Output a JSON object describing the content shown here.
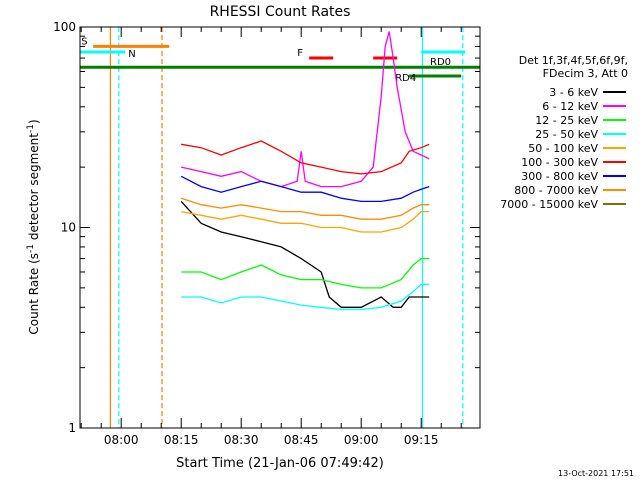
{
  "chart_data": {
    "type": "line",
    "title": "RHESSI Count Rates",
    "xlabel": "Start Time (21-Jan-06 07:49:42)",
    "ylabel_main": "Count Rate (s",
    "ylabel_sup1": "-1",
    "ylabel_mid": " detector segment",
    "ylabel_sup2": "-1",
    "ylabel_end": ")",
    "y_scale": "log",
    "ylim": [
      1,
      100
    ],
    "xlim_minutes": [
      469.7,
      569.7
    ],
    "x_ticks": [
      {
        "minute": 480,
        "label": "08:00"
      },
      {
        "minute": 495,
        "label": "08:15"
      },
      {
        "minute": 510,
        "label": "08:30"
      },
      {
        "minute": 525,
        "label": "08:45"
      },
      {
        "minute": 540,
        "label": "09:00"
      },
      {
        "minute": 555,
        "label": "09:15"
      }
    ],
    "y_ticks": [
      {
        "value": 1,
        "label": "1"
      },
      {
        "value": 10,
        "label": "10"
      },
      {
        "value": 100,
        "label": "100"
      }
    ],
    "legend": {
      "position": "right",
      "header": [
        "Det 1f,3f,4f,5f,6f,9f,",
        "FDecim 3, Att 0"
      ]
    },
    "series": [
      {
        "name": "3 - 6 keV",
        "color": "#000000",
        "points": [
          [
            495,
            13.5
          ],
          [
            500,
            10.5
          ],
          [
            505,
            9.5
          ],
          [
            510,
            9
          ],
          [
            515,
            8.5
          ],
          [
            520,
            8
          ],
          [
            525,
            7
          ],
          [
            530,
            6
          ],
          [
            532,
            4.5
          ],
          [
            535,
            4
          ],
          [
            540,
            4
          ],
          [
            545,
            4.5
          ],
          [
            548,
            4
          ],
          [
            550,
            4
          ],
          [
            552,
            4.5
          ],
          [
            555,
            4.5
          ],
          [
            557,
            4.5
          ]
        ]
      },
      {
        "name": "6 - 12 keV",
        "color": "#ff00ff",
        "points": [
          [
            495,
            20
          ],
          [
            500,
            19
          ],
          [
            505,
            18
          ],
          [
            510,
            19
          ],
          [
            515,
            17
          ],
          [
            520,
            16
          ],
          [
            524,
            17
          ],
          [
            525,
            24
          ],
          [
            526,
            17
          ],
          [
            530,
            16
          ],
          [
            535,
            16
          ],
          [
            540,
            17
          ],
          [
            543,
            20
          ],
          [
            545,
            45
          ],
          [
            546,
            80
          ],
          [
            547,
            95
          ],
          [
            548,
            70
          ],
          [
            549,
            50
          ],
          [
            551,
            30
          ],
          [
            553,
            24
          ],
          [
            555,
            23
          ],
          [
            557,
            22
          ]
        ]
      },
      {
        "name": "12 - 25 keV",
        "color": "#00ff00",
        "points": [
          [
            495,
            6
          ],
          [
            500,
            6
          ],
          [
            505,
            5.5
          ],
          [
            510,
            6
          ],
          [
            515,
            6.5
          ],
          [
            520,
            5.8
          ],
          [
            525,
            5.5
          ],
          [
            530,
            5.5
          ],
          [
            535,
            5.2
          ],
          [
            540,
            5
          ],
          [
            545,
            5
          ],
          [
            550,
            5.5
          ],
          [
            553,
            6.5
          ],
          [
            555,
            7
          ],
          [
            557,
            7
          ]
        ]
      },
      {
        "name": "25 - 50 keV",
        "color": "#00ffff",
        "points": [
          [
            495,
            4.5
          ],
          [
            500,
            4.5
          ],
          [
            505,
            4.2
          ],
          [
            510,
            4.5
          ],
          [
            515,
            4.5
          ],
          [
            520,
            4.3
          ],
          [
            525,
            4.1
          ],
          [
            530,
            4
          ],
          [
            535,
            3.9
          ],
          [
            540,
            3.9
          ],
          [
            545,
            4
          ],
          [
            550,
            4.3
          ],
          [
            553,
            4.8
          ],
          [
            555,
            5.2
          ],
          [
            557,
            5.2
          ]
        ]
      },
      {
        "name": "50 - 100 keV",
        "color": "#ffa500",
        "points": [
          [
            495,
            12
          ],
          [
            500,
            11.5
          ],
          [
            505,
            11
          ],
          [
            510,
            11.5
          ],
          [
            515,
            11
          ],
          [
            520,
            10.5
          ],
          [
            525,
            10.5
          ],
          [
            530,
            10
          ],
          [
            535,
            10
          ],
          [
            540,
            9.5
          ],
          [
            545,
            9.5
          ],
          [
            550,
            10
          ],
          [
            553,
            11
          ],
          [
            555,
            12
          ],
          [
            557,
            12
          ]
        ]
      },
      {
        "name": "100 - 300 keV",
        "color": "#ff0000",
        "points": [
          [
            495,
            26
          ],
          [
            500,
            25
          ],
          [
            505,
            23
          ],
          [
            510,
            25
          ],
          [
            515,
            27
          ],
          [
            520,
            24
          ],
          [
            525,
            21
          ],
          [
            530,
            20
          ],
          [
            535,
            19
          ],
          [
            540,
            18.5
          ],
          [
            545,
            19
          ],
          [
            550,
            21
          ],
          [
            552,
            24
          ],
          [
            555,
            25
          ],
          [
            557,
            26
          ]
        ]
      },
      {
        "name": "300 - 800 keV",
        "color": "#0000ff",
        "points": [
          [
            495,
            18
          ],
          [
            500,
            16
          ],
          [
            505,
            15
          ],
          [
            510,
            16
          ],
          [
            515,
            17
          ],
          [
            520,
            16
          ],
          [
            525,
            15
          ],
          [
            530,
            15
          ],
          [
            535,
            14
          ],
          [
            540,
            13.5
          ],
          [
            545,
            13.5
          ],
          [
            550,
            14
          ],
          [
            553,
            15
          ],
          [
            555,
            15.5
          ],
          [
            557,
            16
          ]
        ]
      },
      {
        "name": "800 - 7000 keV",
        "color": "#ff8c00",
        "points": [
          [
            495,
            14
          ],
          [
            500,
            13
          ],
          [
            505,
            12.5
          ],
          [
            510,
            13
          ],
          [
            515,
            12.5
          ],
          [
            520,
            12
          ],
          [
            525,
            12
          ],
          [
            530,
            11.5
          ],
          [
            535,
            11.5
          ],
          [
            540,
            11
          ],
          [
            545,
            11
          ],
          [
            550,
            11.5
          ],
          [
            553,
            12.5
          ],
          [
            555,
            13
          ],
          [
            557,
            13
          ]
        ]
      },
      {
        "name": "7000 - 15000 keV",
        "color": "#8b6914",
        "points": []
      }
    ],
    "attenuator_bars": [
      {
        "label": "S",
        "color": "#ff7f00",
        "y": 80,
        "x0": 473,
        "x1": 492
      },
      {
        "label": "N",
        "color": "#00ffff",
        "y": 75,
        "x0": 469.7,
        "x1": 481
      },
      {
        "label": "",
        "color": "#00ffff",
        "y": 75,
        "x0": 555,
        "x1": 566
      },
      {
        "label": "F",
        "color": "#ff0000",
        "y": 70,
        "x0": 527,
        "x1": 533
      },
      {
        "label": "",
        "color": "#ff0000",
        "y": 70,
        "x0": 543,
        "x1": 549
      },
      {
        "label": "RD0",
        "color": "#008000",
        "y": 63,
        "x0": 469.7,
        "x1": 569.7
      },
      {
        "label": "RD4",
        "color": "#008000",
        "y": 57,
        "x0": 552,
        "x1": 565
      }
    ],
    "vertical_markers": [
      {
        "minute": 477.3,
        "color": "#ff7f00",
        "style": "solid"
      },
      {
        "minute": 479.4,
        "color": "#00ffff",
        "style": "dashed"
      },
      {
        "minute": 490.2,
        "color": "#ff7f00",
        "style": "dashed"
      },
      {
        "minute": 555.3,
        "color": "#00ffff",
        "style": "solid"
      },
      {
        "minute": 565.4,
        "color": "#00ffff",
        "style": "dashed"
      }
    ]
  },
  "footer_timestamp": "13-Oct-2021 17:51"
}
